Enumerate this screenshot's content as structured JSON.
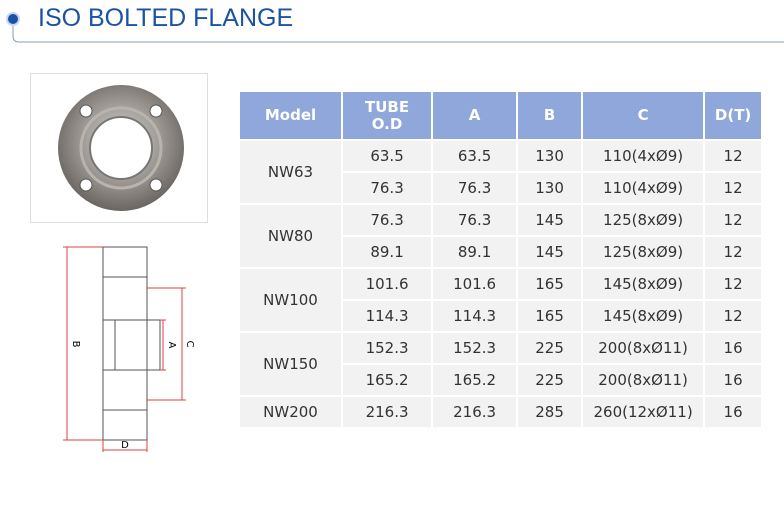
{
  "header": {
    "title": "ISO BOLTED FLANGE"
  },
  "diagram": {
    "labels": [
      "B",
      "A",
      "C",
      "D"
    ]
  },
  "table": {
    "columns": [
      "Model",
      "TUBE O.D",
      "A",
      "B",
      "C",
      "D(T)"
    ],
    "groups": [
      {
        "model": "NW63",
        "rows": [
          [
            "63.5",
            "63.5",
            "130",
            "110(4xØ9)",
            "12"
          ],
          [
            "76.3",
            "76.3",
            "130",
            "110(4xØ9)",
            "12"
          ]
        ]
      },
      {
        "model": "NW80",
        "rows": [
          [
            "76.3",
            "76.3",
            "145",
            "125(8xØ9)",
            "12"
          ],
          [
            "89.1",
            "89.1",
            "145",
            "125(8xØ9)",
            "12"
          ]
        ]
      },
      {
        "model": "NW100",
        "rows": [
          [
            "101.6",
            "101.6",
            "165",
            "145(8xØ9)",
            "12"
          ],
          [
            "114.3",
            "114.3",
            "165",
            "145(8xØ9)",
            "12"
          ]
        ]
      },
      {
        "model": "NW150",
        "rows": [
          [
            "152.3",
            "152.3",
            "225",
            "200(8xØ11)",
            "16"
          ],
          [
            "165.2",
            "165.2",
            "225",
            "200(8xØ11)",
            "16"
          ]
        ]
      },
      {
        "model": "NW200",
        "rows": [
          [
            "216.3",
            "216.3",
            "285",
            "260(12xØ11)",
            "16"
          ]
        ]
      }
    ]
  }
}
